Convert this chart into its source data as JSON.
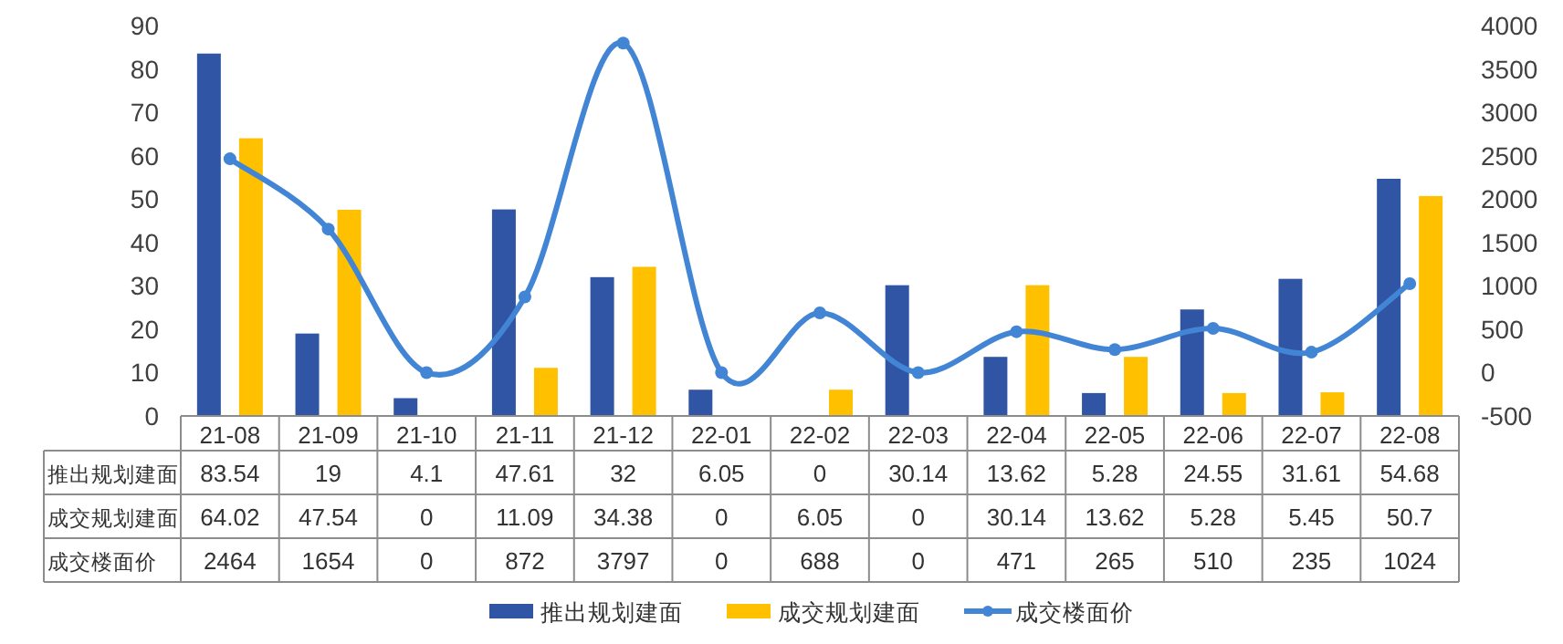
{
  "chart_data": {
    "type": "bar",
    "categories": [
      "21-08",
      "21-09",
      "21-10",
      "21-11",
      "21-12",
      "22-01",
      "22-02",
      "22-03",
      "22-04",
      "22-05",
      "22-06",
      "22-07",
      "22-08"
    ],
    "series": [
      {
        "name": "推出规划建面",
        "color": "#2f55a4",
        "values": [
          83.54,
          19,
          4.1,
          47.61,
          32,
          6.05,
          0,
          30.14,
          13.62,
          5.28,
          24.55,
          31.61,
          54.68
        ]
      },
      {
        "name": "成交规划建面",
        "color": "#ffc000",
        "values": [
          64.02,
          47.54,
          0,
          11.09,
          34.38,
          0,
          6.05,
          0,
          30.14,
          13.62,
          5.28,
          5.45,
          50.7
        ]
      },
      {
        "name": "成交楼面价",
        "type": "line",
        "axis": "y2",
        "marker": "circle",
        "color": "#4285d4",
        "values": [
          2464,
          1654,
          0,
          872,
          3797,
          0,
          688,
          0,
          471,
          265,
          510,
          235,
          1024
        ]
      }
    ],
    "ylim": [
      0,
      90
    ],
    "yticks": [
      0,
      10,
      20,
      30,
      40,
      50,
      60,
      70,
      80,
      90
    ],
    "y2lim": [
      -500,
      4000
    ],
    "y2ticks": [
      -500,
      0,
      500,
      1000,
      1500,
      2000,
      2500,
      3000,
      3500,
      4000
    ],
    "legend": "bottom",
    "data_labels": true
  }
}
